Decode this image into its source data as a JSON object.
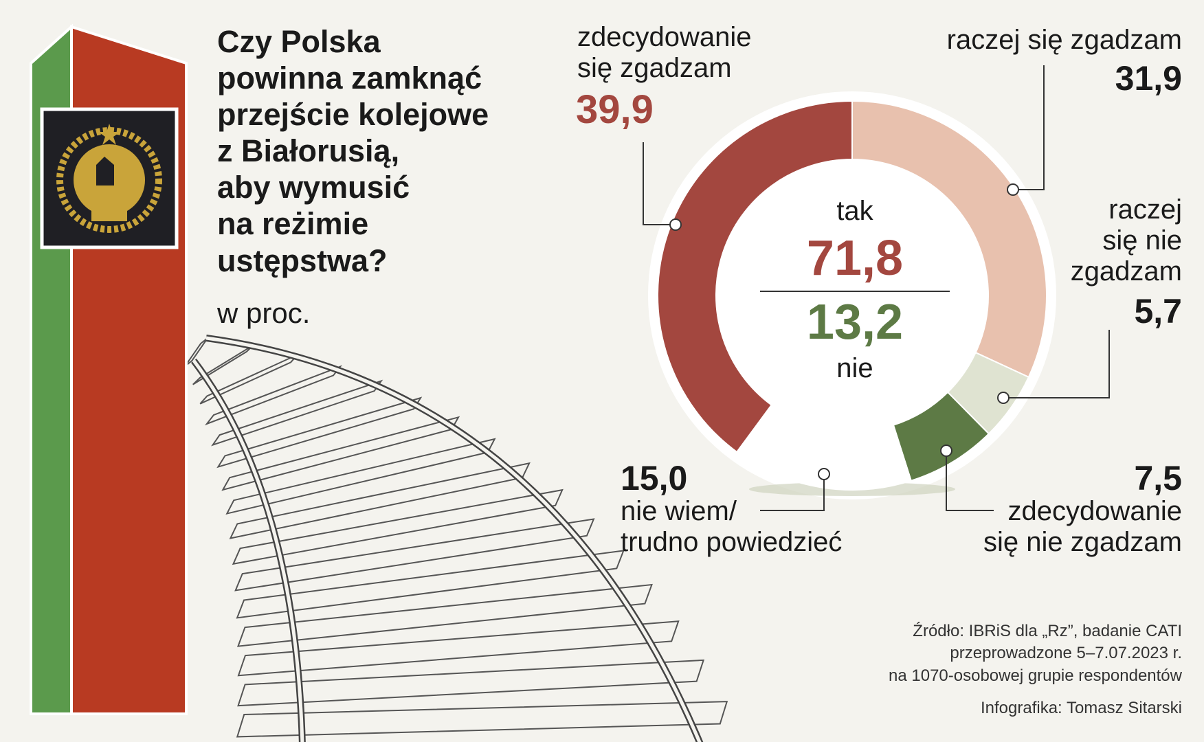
{
  "chart_data": {
    "type": "donut",
    "title": "Czy Polska\npowinna zamknąć\nprzejście kolejowe\nz Białorusią,\naby wymusić\nna reżimie\nustępstwa?",
    "subtitle": "w proc.",
    "categories": [
      "raczej się zgadzam",
      "raczej\nsię nie\nzgadzam",
      "zdecydowanie\nsię nie zgadzam",
      "nie wiem/\ntrudno powiedzieć",
      "zdecydowanie\nsię zgadzam"
    ],
    "values": [
      31.9,
      5.7,
      7.5,
      15.0,
      39.9
    ],
    "value_labels": [
      "31,9",
      "5,7",
      "7,5",
      "15,0",
      "39,9"
    ],
    "colors": [
      "#e8c1ae",
      "#dfe3d1",
      "#5d7a45",
      "#ffffff",
      "#a3473f"
    ],
    "center": {
      "yes": {
        "label": "tak",
        "value": 71.8,
        "value_label": "71,8",
        "color": "#a3473f"
      },
      "no": {
        "label": "nie",
        "value": 13.2,
        "value_label": "13,2",
        "color": "#5d7a45"
      }
    },
    "source": "Źródło: IBRiS dla „Rz”, badanie CATI\nprzeprowadzone 5–7.07.2023 r.\nna 1070-osobowej grupie respondentów",
    "credit": "Infografika: Tomasz Sitarski"
  }
}
